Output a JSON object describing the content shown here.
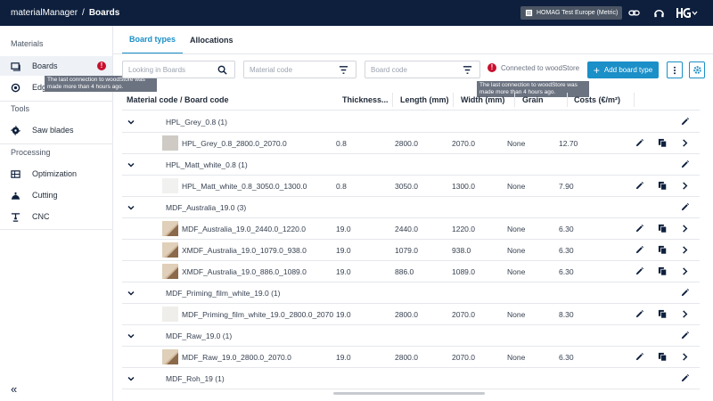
{
  "header": {
    "app_name": "materialManager",
    "separator": "/",
    "breadcrumb": "Boards",
    "tenant": "HOMAG Test Europe (Metric)"
  },
  "sidebar": {
    "sections": [
      {
        "title": "Materials",
        "items": [
          {
            "label": "Boards",
            "icon": "boards-icon",
            "active": true,
            "warning": "!"
          },
          {
            "label": "Edg",
            "icon": "edges-icon",
            "active": false
          }
        ]
      },
      {
        "title": "Tools",
        "items": [
          {
            "label": "Saw blades",
            "icon": "saw-blade-icon",
            "active": false
          }
        ]
      },
      {
        "title": "Processing",
        "items": [
          {
            "label": "Optimization",
            "icon": "optimization-icon",
            "active": false
          },
          {
            "label": "Cutting",
            "icon": "cutting-icon",
            "active": false
          },
          {
            "label": "CNC",
            "icon": "cnc-icon",
            "active": false
          }
        ]
      }
    ],
    "collapse_glyph": "«"
  },
  "tooltip_text": "The last connection to woodStore was made more than 4 hours ago.",
  "tabs": [
    {
      "label": "Board types",
      "active": true
    },
    {
      "label": "Allocations",
      "active": false
    }
  ],
  "filters": {
    "search_placeholder": "Looking in Boards",
    "material_placeholder": "Material code",
    "board_placeholder": "Board code"
  },
  "status": {
    "warning": "!",
    "connection_text": "Connected to woodStore"
  },
  "toolbar": {
    "add_label": "Add board type",
    "add_glyph": "+"
  },
  "columns": [
    "Material code / Board code",
    "Thickness...",
    "Length (mm)",
    "Width (mm)",
    "Grain",
    "Costs (€/m²)"
  ],
  "rows": [
    {
      "type": "group",
      "name": "HPL_Grey_0.8 (1)"
    },
    {
      "type": "board",
      "code": "HPL_Grey_0.8_2800.0_2070.0",
      "thickness": "0.8",
      "length": "2800.0",
      "width": "2070.0",
      "grain": "None",
      "cost": "12.70",
      "thumb": "grey"
    },
    {
      "type": "group",
      "name": "HPL_Matt_white_0.8 (1)"
    },
    {
      "type": "board",
      "code": "HPL_Matt_white_0.8_3050.0_1300.0",
      "thickness": "0.8",
      "length": "3050.0",
      "width": "1300.0",
      "grain": "None",
      "cost": "7.90",
      "thumb": "white"
    },
    {
      "type": "group",
      "name": "MDF_Australia_19.0 (3)"
    },
    {
      "type": "board",
      "code": "MDF_Australia_19.0_2440.0_1220.0",
      "thickness": "19.0",
      "length": "2440.0",
      "width": "1220.0",
      "grain": "None",
      "cost": "6.30",
      "thumb": "mdf"
    },
    {
      "type": "board",
      "code": "XMDF_Australia_19.0_1079.0_938.0",
      "thickness": "19.0",
      "length": "1079.0",
      "width": "938.0",
      "grain": "None",
      "cost": "6.30",
      "thumb": "mdf"
    },
    {
      "type": "board",
      "code": "XMDF_Australia_19.0_886.0_1089.0",
      "thickness": "19.0",
      "length": "886.0",
      "width": "1089.0",
      "grain": "None",
      "cost": "6.30",
      "thumb": "mdf"
    },
    {
      "type": "group",
      "name": "MDF_Priming_film_white_19.0 (1)"
    },
    {
      "type": "board",
      "code": "MDF_Priming_film_white_19.0_2800.0_2070",
      "thickness": "19.0",
      "length": "2800.0",
      "width": "2070.0",
      "grain": "None",
      "cost": "8.30",
      "thumb": "offwhite"
    },
    {
      "type": "group",
      "name": "MDF_Raw_19.0 (1)"
    },
    {
      "type": "board",
      "code": "MDF_Raw_19.0_2800.0_2070.0",
      "thickness": "19.0",
      "length": "2800.0",
      "width": "2070.0",
      "grain": "None",
      "cost": "6.30",
      "thumb": "mdf"
    },
    {
      "type": "group",
      "name": "MDF_Roh_19 (1)"
    }
  ],
  "colors": {
    "header_bg": "#0d1f3c",
    "accent": "#1b8fc7",
    "warning": "#c8102e"
  }
}
